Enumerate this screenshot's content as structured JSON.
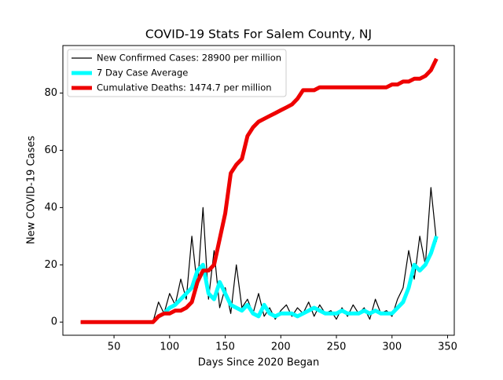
{
  "chart_data": {
    "type": "line",
    "title": "COVID-19 Stats For Salem County, NJ",
    "x_label": "Days Since 2020 Began",
    "y_label": "New COVID-19 Cases",
    "x": [
      20,
      25,
      30,
      35,
      40,
      45,
      50,
      55,
      60,
      65,
      70,
      75,
      80,
      85,
      90,
      95,
      100,
      105,
      110,
      115,
      120,
      125,
      130,
      135,
      140,
      145,
      150,
      155,
      160,
      165,
      170,
      175,
      180,
      185,
      190,
      195,
      200,
      205,
      210,
      215,
      220,
      225,
      230,
      235,
      240,
      245,
      250,
      255,
      260,
      265,
      270,
      275,
      280,
      285,
      290,
      295,
      300,
      305,
      310,
      315,
      320,
      325,
      330,
      335,
      340
    ],
    "series": [
      {
        "name": "New Confirmed Cases: 28900 per million",
        "color": "#000000",
        "values": [
          0,
          0,
          0,
          0,
          0,
          0,
          0,
          0,
          0,
          0,
          0,
          0,
          0,
          0,
          7,
          3,
          10,
          6,
          15,
          8,
          30,
          12,
          40,
          8,
          25,
          5,
          12,
          3,
          20,
          5,
          8,
          3,
          10,
          2,
          5,
          1,
          4,
          6,
          2,
          5,
          3,
          7,
          2,
          6,
          3,
          4,
          1,
          5,
          2,
          6,
          3,
          5,
          1,
          8,
          3,
          4,
          2,
          8,
          12,
          25,
          15,
          30,
          20,
          47,
          28
        ]
      },
      {
        "name": "7 Day Case Average",
        "color": "#00ffff",
        "values": [
          null,
          null,
          null,
          null,
          null,
          null,
          null,
          null,
          null,
          null,
          null,
          null,
          null,
          null,
          2,
          3,
          5,
          6,
          8,
          10,
          12,
          18,
          20,
          10,
          8,
          14,
          10,
          6,
          5,
          4,
          6,
          3,
          2,
          6,
          3,
          2,
          3,
          3,
          3,
          2,
          3,
          4,
          5,
          4,
          3,
          3,
          3,
          4,
          3,
          3,
          3,
          4,
          3,
          4,
          3,
          3,
          3,
          5,
          7,
          12,
          20,
          18,
          20,
          24,
          30
        ]
      },
      {
        "name": "Cumulative Deaths: 1474.7 per million",
        "color": "#ee0000",
        "values": [
          0,
          0,
          0,
          0,
          0,
          0,
          0,
          0,
          0,
          0,
          0,
          0,
          0,
          0,
          2,
          3,
          3,
          4,
          4,
          5,
          7,
          14,
          18,
          18,
          20,
          29,
          38,
          52,
          55,
          57,
          65,
          68,
          70,
          71,
          72,
          73,
          74,
          75,
          76,
          78,
          81,
          81,
          81,
          82,
          82,
          82,
          82,
          82,
          82,
          82,
          82,
          82,
          82,
          82,
          82,
          82,
          83,
          83,
          84,
          84,
          85,
          85,
          86,
          88,
          92
        ]
      }
    ],
    "xlim": [
      4,
      356
    ],
    "xticks": [
      50,
      100,
      150,
      200,
      250,
      300,
      350
    ],
    "ylim": [
      -4.6,
      96.6
    ],
    "yticks": [
      0,
      20,
      40,
      60,
      80
    ],
    "legend": "upper left"
  }
}
